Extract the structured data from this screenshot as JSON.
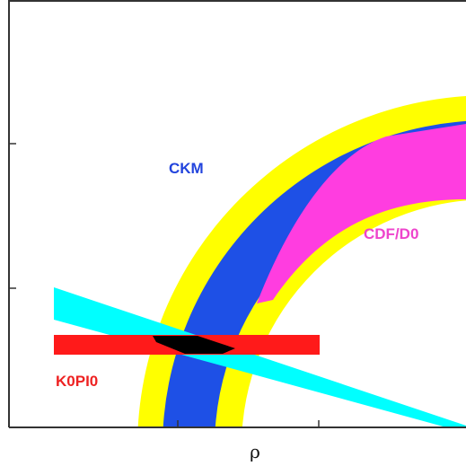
{
  "chart_data": {
    "type": "area",
    "title": "",
    "xlabel": "ρ",
    "ylabel": "",
    "grid": false,
    "legend": "none",
    "regions": [
      {
        "name": "CKM",
        "kind": "ring",
        "color": "#1e50e6"
      },
      {
        "name": "",
        "kind": "ring-outer-band",
        "color": "#ffff00"
      },
      {
        "name": "CDF/D0",
        "kind": "ring-segment",
        "color": "#ff3de0"
      },
      {
        "name": "K0PI0",
        "kind": "horizontal-band",
        "color": "#ff1a1a"
      },
      {
        "name": "",
        "kind": "diagonal-band",
        "color": "#00ffff"
      },
      {
        "name": "",
        "kind": "overlap",
        "color": "#000000"
      }
    ]
  },
  "labels": {
    "ckm": "CKM",
    "cdf": "CDF/D0",
    "k0pi0": "K0PI0",
    "xlabel": "ρ"
  },
  "colors": {
    "frame": "#333333",
    "ckm": "#1e50e6",
    "ckm_text": "#2244dd",
    "yellow": "#ffff00",
    "cdf": "#ff3de0",
    "k0pi0": "#ff1a1a",
    "cyan": "#00ffff",
    "overlap": "#000000"
  }
}
